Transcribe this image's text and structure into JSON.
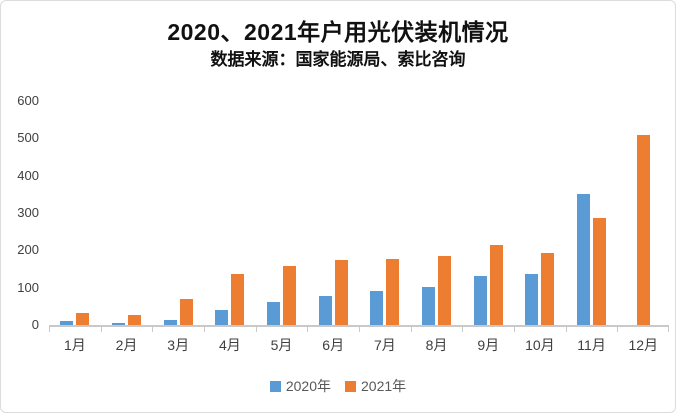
{
  "header": {
    "title": "2020、2021年户用光伏装机情况",
    "subtitle": "数据来源：国家能源局、索比咨询"
  },
  "colors": {
    "series_2020": "#5B9BD5",
    "series_2021": "#ED7D31",
    "axis": "#C9C9C9",
    "text": "#404040"
  },
  "chart_data": {
    "type": "bar",
    "title": "2020、2021年户用光伏装机情况",
    "subtitle": "数据来源：国家能源局、索比咨询",
    "categories": [
      "1月",
      "2月",
      "3月",
      "4月",
      "5月",
      "6月",
      "7月",
      "8月",
      "9月",
      "10月",
      "11月",
      "12月"
    ],
    "series": [
      {
        "name": "2020年",
        "color": "#5B9BD5",
        "values": [
          12,
          5,
          13,
          40,
          62,
          77,
          90,
          102,
          130,
          136,
          350,
          null
        ]
      },
      {
        "name": "2021年",
        "color": "#ED7D31",
        "values": [
          32,
          28,
          70,
          136,
          157,
          174,
          178,
          185,
          215,
          193,
          287,
          510
        ]
      }
    ],
    "xlabel": "",
    "ylabel": "",
    "ylim": [
      0,
      600
    ],
    "yticks": [
      0,
      100,
      200,
      300,
      400,
      500,
      600
    ],
    "grid": false,
    "legend_position": "bottom"
  },
  "legend": {
    "items": [
      {
        "label": "2020年",
        "color": "#5B9BD5"
      },
      {
        "label": "2021年",
        "color": "#ED7D31"
      }
    ]
  }
}
